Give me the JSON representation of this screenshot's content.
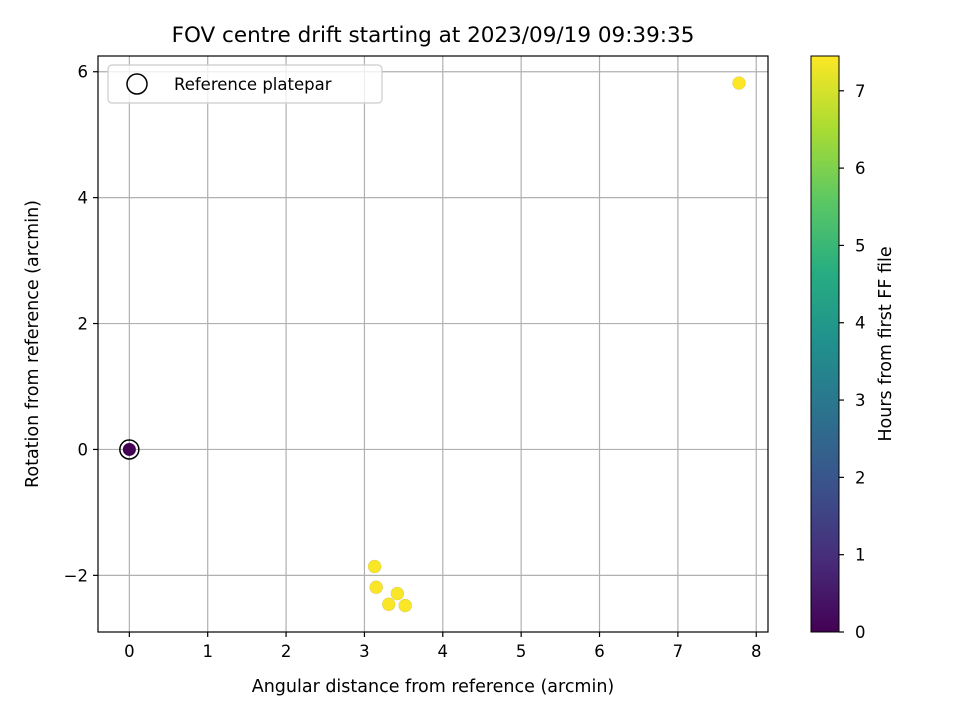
{
  "chart_data": {
    "type": "scatter",
    "title": "FOV centre drift starting at 2023/09/19 09:39:35",
    "xlabel": "Angular distance from reference (arcmin)",
    "ylabel": "Rotation from reference (arcmin)",
    "xlim": [
      -0.4,
      8.15
    ],
    "ylim": [
      -2.9,
      6.25
    ],
    "xticks": [
      0,
      1,
      2,
      3,
      4,
      5,
      6,
      7,
      8
    ],
    "yticks": [
      -2,
      0,
      2,
      4,
      6
    ],
    "grid": true,
    "legend": {
      "placement": "upper-left",
      "entries": [
        {
          "label": "Reference platepar",
          "marker": "open-circle",
          "edge_color": "#000000"
        }
      ]
    },
    "reference_point": {
      "x": 0,
      "y": 0
    },
    "points": [
      {
        "x": 0.0,
        "y": 0.0,
        "hours": 0.0
      },
      {
        "x": 3.13,
        "y": -1.86,
        "hours": 7.4
      },
      {
        "x": 3.15,
        "y": -2.19,
        "hours": 7.4
      },
      {
        "x": 3.42,
        "y": -2.29,
        "hours": 7.4
      },
      {
        "x": 3.31,
        "y": -2.46,
        "hours": 7.4
      },
      {
        "x": 3.52,
        "y": -2.48,
        "hours": 7.4
      },
      {
        "x": 7.78,
        "y": 5.82,
        "hours": 7.45
      }
    ],
    "colorbar": {
      "label": "Hours from first FF file",
      "colormap": "viridis",
      "range": [
        0,
        7.45
      ],
      "ticks": [
        0,
        1,
        2,
        3,
        4,
        5,
        6,
        7
      ]
    }
  }
}
